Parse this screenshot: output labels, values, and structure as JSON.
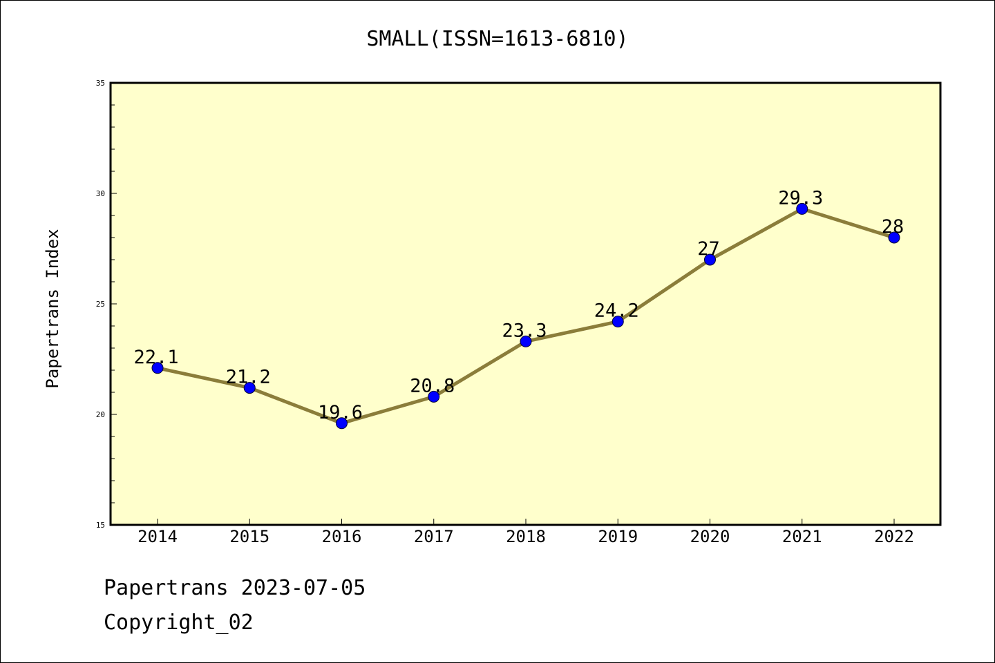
{
  "chart_data": {
    "type": "line",
    "title": "SMALL(ISSN=1613-6810)",
    "xlabel": "",
    "ylabel": "Papertrans Index",
    "categories": [
      "2014",
      "2015",
      "2016",
      "2017",
      "2018",
      "2019",
      "2020",
      "2021",
      "2022"
    ],
    "series": [
      {
        "name": "Papertrans Index",
        "values": [
          22.1,
          21.2,
          19.6,
          20.8,
          23.3,
          24.2,
          27,
          29.3,
          28
        ],
        "labels": [
          "22.1",
          "21.2",
          "19.6",
          "20.8",
          "23.3",
          "24.2",
          "27",
          "29.3",
          "28"
        ]
      }
    ],
    "ylim": [
      15,
      35
    ],
    "yticks": [
      "15",
      "20",
      "25",
      "30",
      "35"
    ],
    "grid": false,
    "colors": {
      "plot_background": "#FFFFCC",
      "line": "#8B7D3A",
      "marker": "#0000FF",
      "axis": "#000000"
    }
  },
  "footer": {
    "date_line": "Papertrans 2023-07-05",
    "copyright_line": "Copyright_02"
  }
}
